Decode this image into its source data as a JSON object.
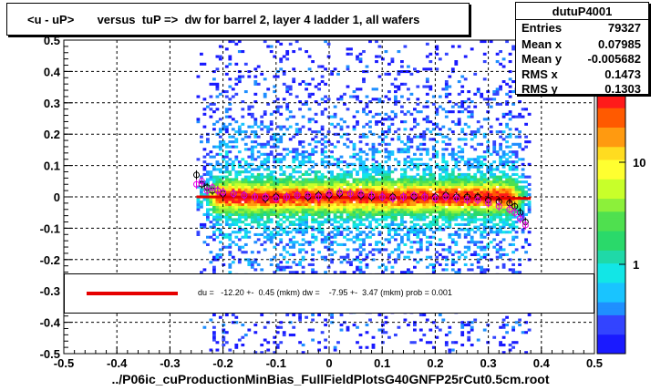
{
  "title": "<u - uP>       versus  tuP =>  dw for barrel 2, layer 4 ladder 1, all wafers",
  "stats": {
    "name": "dutuP4001",
    "rows": [
      {
        "k": "Entries",
        "v": "79327"
      },
      {
        "k": "Mean x",
        "v": "0.07985"
      },
      {
        "k": "Mean y",
        "v": "-0.005682"
      },
      {
        "k": "RMS x",
        "v": "0.1473"
      },
      {
        "k": "RMS y",
        "v": "0.1303"
      }
    ]
  },
  "fit_text": "du =   -12.20 +-  0.45 (mkm) dw =    -7.95 +-  3.47 (mkm) prob = 0.001",
  "footer": "../P06ic_cuProductionMinBias_FullFieldPlotsG40GNFP25rCut0.5cm.root",
  "colors": {
    "fit_line": "#e60000",
    "profile_a": "#000000",
    "profile_b": "#e600e6"
  },
  "chart_data": {
    "type": "heatmap",
    "xlim": [
      -0.5,
      0.5
    ],
    "ylim": [
      -0.5,
      0.5
    ],
    "x_ticks": [
      "-0.5",
      "-0.4",
      "-0.3",
      "-0.2",
      "-0.1",
      "0",
      "0.1",
      "0.2",
      "0.3",
      "0.4",
      "0.5"
    ],
    "y_ticks": [
      "-0.5",
      "-0.4",
      "-0.3",
      "-0.2",
      "-0.1",
      "0",
      "0.1",
      "0.2",
      "0.3",
      "0.4",
      "0.5"
    ],
    "colorbar_ticks": [
      "1",
      "10"
    ],
    "grid": true,
    "x_range_populated": [
      -0.25,
      0.38
    ],
    "fit_line": {
      "x": [
        -0.25,
        0.38
      ],
      "y": [
        0.0,
        -0.005
      ]
    },
    "profile_a": {
      "x": [
        -0.25,
        -0.24,
        -0.23,
        -0.22,
        -0.21,
        -0.2,
        -0.18,
        -0.16,
        -0.14,
        -0.12,
        -0.1,
        -0.08,
        -0.06,
        -0.04,
        -0.02,
        0.0,
        0.02,
        0.04,
        0.06,
        0.08,
        0.1,
        0.12,
        0.14,
        0.16,
        0.18,
        0.2,
        0.22,
        0.24,
        0.26,
        0.28,
        0.3,
        0.32,
        0.34,
        0.35,
        0.36,
        0.37
      ],
      "y": [
        0.07,
        0.04,
        0.03,
        0.02,
        0.02,
        0.01,
        0.01,
        0.005,
        0.0,
        -0.005,
        0.0,
        0.0,
        0.005,
        0.0,
        0.005,
        0.005,
        0.01,
        0.01,
        0.005,
        0.0,
        0.0,
        0.0,
        0.0,
        0.0,
        0.0,
        0.0,
        0.005,
        0.0,
        0.0,
        0.0,
        -0.01,
        -0.015,
        -0.02,
        -0.03,
        -0.05,
        -0.08
      ]
    },
    "profile_b": {
      "x": [
        -0.25,
        -0.24,
        -0.23,
        -0.22,
        -0.21,
        -0.2,
        -0.18,
        -0.16,
        -0.14,
        -0.12,
        -0.1,
        -0.08,
        -0.06,
        -0.04,
        -0.02,
        0.0,
        0.02,
        0.04,
        0.06,
        0.08,
        0.1,
        0.12,
        0.14,
        0.16,
        0.18,
        0.2,
        0.22,
        0.24,
        0.26,
        0.28,
        0.3,
        0.32,
        0.34,
        0.35,
        0.36,
        0.37
      ],
      "y": [
        0.04,
        0.05,
        0.02,
        0.03,
        0.02,
        0.015,
        0.01,
        0.005,
        0.0,
        0.0,
        -0.005,
        0.0,
        0.005,
        0.005,
        0.0,
        0.01,
        0.015,
        0.01,
        0.01,
        0.005,
        0.0,
        -0.005,
        0.0,
        0.005,
        0.0,
        -0.005,
        0.0,
        -0.005,
        -0.01,
        -0.01,
        -0.02,
        -0.03,
        -0.04,
        -0.05,
        -0.07,
        -0.09
      ]
    }
  }
}
